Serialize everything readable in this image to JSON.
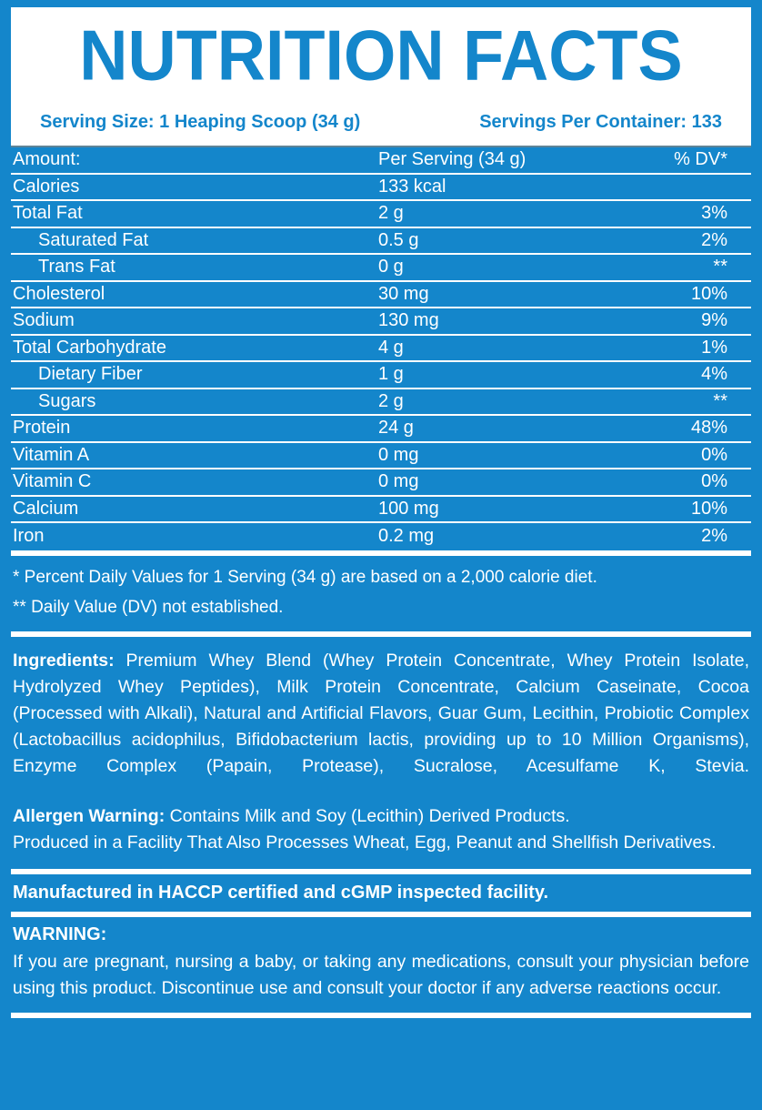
{
  "colors": {
    "blue": "#1486cb",
    "white": "#ffffff",
    "table_top_edge": "#094260"
  },
  "header": {
    "title": "NUTRITION FACTS",
    "serving_size": "Serving Size: 1 Heaping Scoop (34 g)",
    "servings_per_container": "Servings Per Container: 133"
  },
  "table": {
    "columns": [
      "Amount:",
      "Per Serving (34 g)",
      "% DV*"
    ],
    "rows": [
      {
        "name": "Calories",
        "amount": "133 kcal",
        "dv": "",
        "indent": false
      },
      {
        "name": "Total Fat",
        "amount": "2 g",
        "dv": "3%",
        "indent": false
      },
      {
        "name": "Saturated Fat",
        "amount": "0.5 g",
        "dv": "2%",
        "indent": true
      },
      {
        "name": "Trans Fat",
        "amount": "0 g",
        "dv": "**",
        "indent": true
      },
      {
        "name": "Cholesterol",
        "amount": "30 mg",
        "dv": "10%",
        "indent": false
      },
      {
        "name": "Sodium",
        "amount": "130 mg",
        "dv": "9%",
        "indent": false
      },
      {
        "name": "Total Carbohydrate",
        "amount": "4 g",
        "dv": "1%",
        "indent": false
      },
      {
        "name": "Dietary Fiber",
        "amount": "1 g",
        "dv": "4%",
        "indent": true
      },
      {
        "name": "Sugars",
        "amount": "2 g",
        "dv": "**",
        "indent": true
      },
      {
        "name": "Protein",
        "amount": "24 g",
        "dv": "48%",
        "indent": false
      },
      {
        "name": "Vitamin A",
        "amount": "0 mg",
        "dv": "0%",
        "indent": false
      },
      {
        "name": "Vitamin C",
        "amount": "0 mg",
        "dv": "0%",
        "indent": false
      },
      {
        "name": "Calcium",
        "amount": "100 mg",
        "dv": "10%",
        "indent": false
      },
      {
        "name": "Iron",
        "amount": "0.2 mg",
        "dv": "2%",
        "indent": false
      }
    ]
  },
  "footnotes": {
    "daily_values": "* Percent Daily Values for 1 Serving (34 g) are based on a 2,000 calorie diet.",
    "not_established": "** Daily Value (DV) not established."
  },
  "ingredients": {
    "label": "Ingredients:",
    "text": "Premium Whey Blend (Whey Protein Concentrate, Whey Protein Isolate, Hydrolyzed Whey Peptides), Milk Protein Concentrate, Calcium Caseinate, Cocoa (Processed with Alkali), Natural and Artificial Flavors, Guar Gum, Lecithin, Probiotic Complex (Lactobacillus acidophilus, Bifidobacterium lactis, providing up to 10 Million Organisms), Enzyme Complex (Papain, Protease), Sucralose, Acesulfame K, Stevia."
  },
  "allergen": {
    "label": "Allergen Warning:",
    "line1": "Contains Milk and Soy (Lecithin) Derived Products.",
    "line2": "Produced in a Facility That Also Processes Wheat, Egg, Peanut and Shellfish Derivatives."
  },
  "manufactured": "Manufactured in HACCP certified and cGMP inspected facility.",
  "warning": {
    "label": "WARNING:",
    "text": "If you are pregnant, nursing a baby, or taking any medications, consult your physician before using this product. Discontinue use and consult your doctor if any adverse reactions occur."
  }
}
